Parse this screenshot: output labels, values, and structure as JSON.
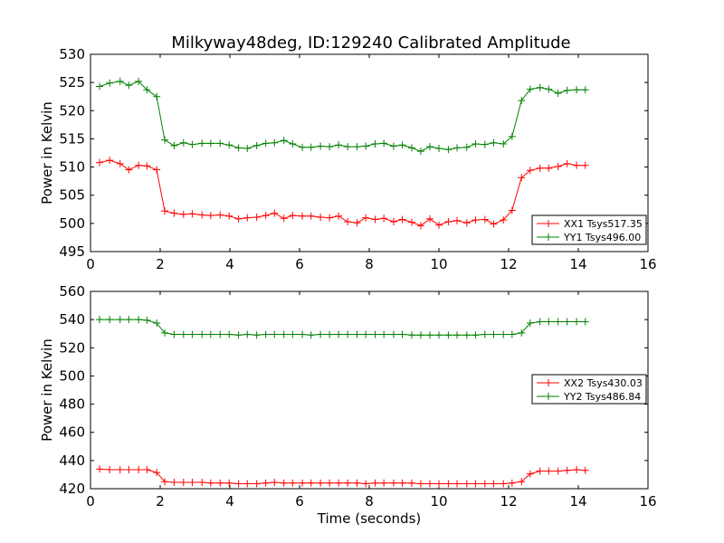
{
  "title": "Milkyway48deg, ID:129240 Calibrated Amplitude",
  "chart_data": [
    {
      "type": "line",
      "ylabel": "Power in Kelvin",
      "xlabel": "",
      "xlim": [
        0,
        16
      ],
      "ylim": [
        495,
        530
      ],
      "xticks": [
        0,
        2,
        4,
        6,
        8,
        10,
        12,
        14,
        16
      ],
      "yticks": [
        495,
        500,
        505,
        510,
        515,
        520,
        525,
        530
      ],
      "grid": false,
      "legend_position": "lower-right",
      "series": [
        {
          "name": "XX1 Tsys517.35",
          "color": "#ff0000",
          "x": [
            0.26,
            0.55,
            0.85,
            1.1,
            1.38,
            1.62,
            1.9,
            2.13,
            2.4,
            2.67,
            2.92,
            3.2,
            3.45,
            3.72,
            3.98,
            4.25,
            4.5,
            4.77,
            5.03,
            5.28,
            5.55,
            5.8,
            6.08,
            6.33,
            6.6,
            6.86,
            7.12,
            7.38,
            7.65,
            7.9,
            8.17,
            8.42,
            8.7,
            8.95,
            9.22,
            9.48,
            9.74,
            10.0,
            10.27,
            10.52,
            10.8,
            11.05,
            11.32,
            11.57,
            11.85,
            12.1,
            12.37,
            12.62,
            12.9,
            13.15,
            13.42,
            13.68,
            13.95,
            14.2
          ],
          "y": [
            510.8,
            511.2,
            510.6,
            509.5,
            510.3,
            510.2,
            509.5,
            502.2,
            501.8,
            501.6,
            501.7,
            501.5,
            501.4,
            501.5,
            501.3,
            500.8,
            501.0,
            501.1,
            501.4,
            501.8,
            500.9,
            501.4,
            501.3,
            501.3,
            501.1,
            501.0,
            501.3,
            500.3,
            500.1,
            501.0,
            500.7,
            500.9,
            500.3,
            500.7,
            500.2,
            499.6,
            500.8,
            499.7,
            500.3,
            500.5,
            500.1,
            500.6,
            500.7,
            499.9,
            500.6,
            502.3,
            508.1,
            509.4,
            509.8,
            509.8,
            510.1,
            510.6,
            510.3,
            510.3
          ]
        },
        {
          "name": "YY1 Tsys496.00",
          "color": "#008000",
          "x": [
            0.26,
            0.55,
            0.85,
            1.1,
            1.38,
            1.62,
            1.9,
            2.13,
            2.4,
            2.67,
            2.92,
            3.2,
            3.45,
            3.72,
            3.98,
            4.25,
            4.5,
            4.77,
            5.03,
            5.28,
            5.55,
            5.8,
            6.08,
            6.33,
            6.6,
            6.86,
            7.12,
            7.38,
            7.65,
            7.9,
            8.17,
            8.42,
            8.7,
            8.95,
            9.22,
            9.48,
            9.74,
            10.0,
            10.27,
            10.52,
            10.8,
            11.05,
            11.32,
            11.57,
            11.85,
            12.1,
            12.37,
            12.62,
            12.9,
            13.15,
            13.42,
            13.68,
            13.95,
            14.2
          ],
          "y": [
            524.3,
            524.9,
            525.2,
            524.5,
            525.2,
            523.7,
            522.5,
            514.8,
            513.8,
            514.3,
            514.0,
            514.2,
            514.2,
            514.2,
            513.9,
            513.4,
            513.3,
            513.8,
            514.2,
            514.3,
            514.7,
            514.1,
            513.5,
            513.5,
            513.7,
            513.6,
            513.9,
            513.6,
            513.6,
            513.7,
            514.1,
            514.2,
            513.7,
            513.9,
            513.4,
            512.8,
            513.6,
            513.3,
            513.1,
            513.4,
            513.5,
            514.1,
            514.0,
            514.3,
            514.1,
            515.4,
            521.8,
            523.8,
            524.1,
            523.8,
            523.1,
            523.6,
            523.7,
            523.7
          ]
        }
      ]
    },
    {
      "type": "line",
      "ylabel": "Power in Kelvin",
      "xlabel": "Time (seconds)",
      "xlim": [
        0,
        16
      ],
      "ylim": [
        420,
        560
      ],
      "xticks": [
        0,
        2,
        4,
        6,
        8,
        10,
        12,
        14,
        16
      ],
      "yticks": [
        420,
        440,
        460,
        480,
        500,
        520,
        540,
        560
      ],
      "grid": false,
      "legend_position": "center-right",
      "series": [
        {
          "name": "XX2 Tsys430.03",
          "color": "#ff0000",
          "x": [
            0.26,
            0.55,
            0.85,
            1.1,
            1.38,
            1.62,
            1.9,
            2.13,
            2.4,
            2.67,
            2.92,
            3.2,
            3.45,
            3.72,
            3.98,
            4.25,
            4.5,
            4.77,
            5.03,
            5.28,
            5.55,
            5.8,
            6.08,
            6.33,
            6.6,
            6.86,
            7.12,
            7.38,
            7.65,
            7.9,
            8.17,
            8.42,
            8.7,
            8.95,
            9.22,
            9.48,
            9.74,
            10.0,
            10.27,
            10.52,
            10.8,
            11.05,
            11.32,
            11.57,
            11.85,
            12.1,
            12.37,
            12.62,
            12.9,
            13.15,
            13.42,
            13.68,
            13.95,
            14.2
          ],
          "y": [
            434,
            433.5,
            433.5,
            433.5,
            433.5,
            433.5,
            431.5,
            425,
            424.5,
            424.5,
            424.5,
            424.5,
            424,
            424,
            424,
            423.5,
            423.5,
            423.5,
            424,
            424.5,
            424,
            424,
            424,
            424,
            424,
            424,
            424,
            424,
            424,
            423.5,
            424,
            424,
            424,
            424,
            424,
            423.5,
            423.5,
            423.5,
            423.5,
            423.5,
            423.5,
            423.5,
            423.5,
            423.5,
            423.5,
            424,
            425,
            430.5,
            432.5,
            432.5,
            432.5,
            433,
            433.5,
            433
          ]
        },
        {
          "name": "YY2 Tsys486.84",
          "color": "#008000",
          "x": [
            0.26,
            0.55,
            0.85,
            1.1,
            1.38,
            1.62,
            1.9,
            2.13,
            2.4,
            2.67,
            2.92,
            3.2,
            3.45,
            3.72,
            3.98,
            4.25,
            4.5,
            4.77,
            5.03,
            5.28,
            5.55,
            5.8,
            6.08,
            6.33,
            6.6,
            6.86,
            7.12,
            7.38,
            7.65,
            7.9,
            8.17,
            8.42,
            8.7,
            8.95,
            9.22,
            9.48,
            9.74,
            10.0,
            10.27,
            10.52,
            10.8,
            11.05,
            11.32,
            11.57,
            11.85,
            12.1,
            12.37,
            12.62,
            12.9,
            13.15,
            13.42,
            13.68,
            13.95,
            14.2
          ],
          "y": [
            540,
            540,
            540,
            540,
            540,
            539.5,
            537.5,
            530.5,
            529.5,
            529.5,
            529.5,
            529.5,
            529.5,
            529.5,
            529.5,
            529,
            529.5,
            529,
            529.5,
            529.5,
            529.5,
            529.5,
            529.5,
            529,
            529.5,
            529.5,
            529.5,
            529.5,
            529.5,
            529.5,
            529.5,
            529.5,
            529.5,
            529.5,
            529,
            529,
            529,
            529,
            529,
            529,
            529,
            529,
            529.5,
            529.5,
            529.5,
            529.5,
            530.5,
            537.5,
            538.5,
            538.5,
            538.5,
            538.5,
            538.5,
            538.5
          ]
        }
      ]
    }
  ]
}
